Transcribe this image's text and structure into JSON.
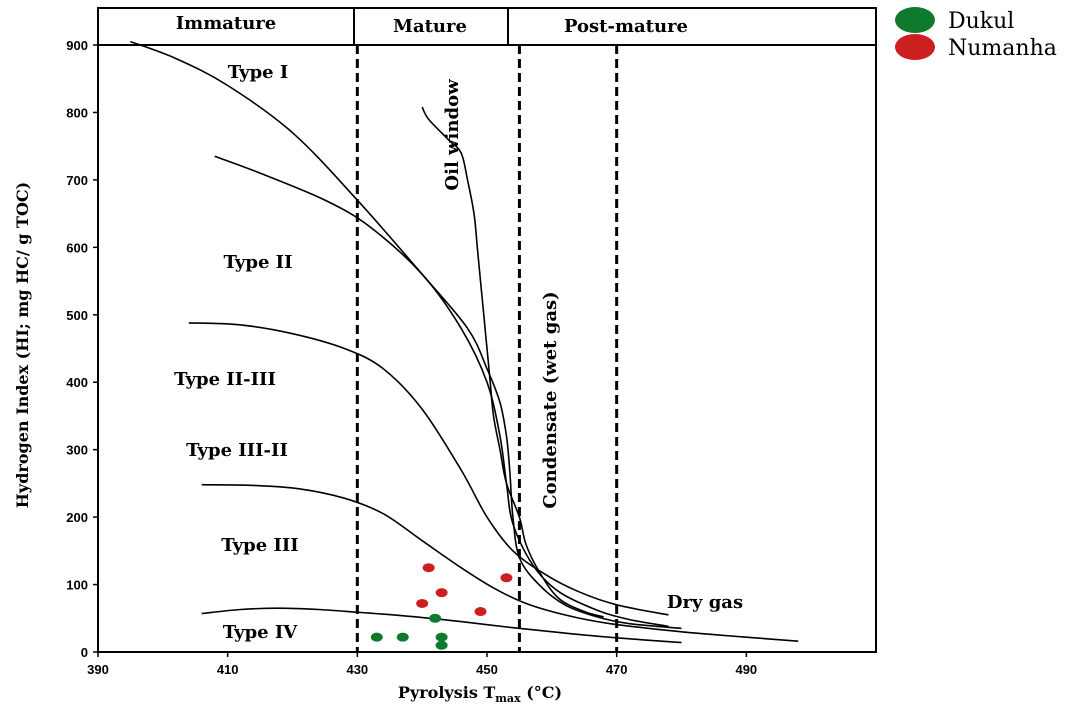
{
  "chart_data": {
    "type": "scatter",
    "title": "",
    "xlabel": "Pyrolysis T",
    "xlabel_sub": "max",
    "xlabel_unit": " (°C)",
    "ylabel": "Hydrogen Index (HI; mg HC/ g TOC)",
    "xlim": [
      390,
      510
    ],
    "ylim": [
      0,
      900
    ],
    "x_ticks": [
      "390",
      "410",
      "430",
      "450",
      "470",
      "490"
    ],
    "y_ticks": [
      "0",
      "100",
      "200",
      "300",
      "400",
      "500",
      "600",
      "700",
      "800",
      "900"
    ],
    "maturity_zones": [
      "Immature",
      "Mature",
      "Post-mature"
    ],
    "zone_boundaries": [
      430,
      455,
      470
    ],
    "kerogen_labels": [
      "Type I",
      "Type II",
      "Type II-III",
      "Type III-II",
      "Type III",
      "Type IV"
    ],
    "region_labels": [
      "Oil window",
      "Condensate (wet gas)",
      "Dry gas"
    ],
    "legend_position": "top-right",
    "colors": {
      "Dukul": "#0f7a2e",
      "Numanha": "#cc1f1f"
    },
    "series": [
      {
        "name": "Dukul",
        "points": [
          [
            433,
            22
          ],
          [
            437,
            22
          ],
          [
            442,
            50
          ],
          [
            443,
            22
          ],
          [
            443,
            10
          ]
        ]
      },
      {
        "name": "Numanha",
        "points": [
          [
            441,
            125
          ],
          [
            443,
            88
          ],
          [
            440,
            72
          ],
          [
            449,
            60
          ],
          [
            453,
            110
          ]
        ]
      }
    ],
    "curves": [
      [
        [
          395,
          905
        ],
        [
          402,
          880
        ],
        [
          410,
          840
        ],
        [
          420,
          770
        ],
        [
          430,
          670
        ],
        [
          440,
          560
        ],
        [
          447,
          480
        ],
        [
          450,
          420
        ],
        [
          452,
          370
        ],
        [
          453,
          320
        ],
        [
          453.5,
          270
        ],
        [
          454,
          200
        ],
        [
          455,
          140
        ],
        [
          458,
          100
        ],
        [
          462,
          70
        ],
        [
          467,
          52
        ],
        [
          472,
          42
        ],
        [
          480,
          35
        ]
      ],
      [
        [
          408,
          735
        ],
        [
          415,
          710
        ],
        [
          425,
          670
        ],
        [
          432,
          630
        ],
        [
          440,
          560
        ],
        [
          446,
          480
        ],
        [
          450,
          400
        ],
        [
          452,
          320
        ],
        [
          453,
          250
        ],
        [
          454,
          190
        ],
        [
          457,
          130
        ],
        [
          461,
          90
        ],
        [
          467,
          62
        ],
        [
          472,
          48
        ],
        [
          478,
          38
        ]
      ],
      [
        [
          404,
          488
        ],
        [
          412,
          485
        ],
        [
          420,
          472
        ],
        [
          428,
          450
        ],
        [
          434,
          420
        ],
        [
          440,
          360
        ],
        [
          446,
          270
        ],
        [
          450,
          200
        ],
        [
          454,
          150
        ],
        [
          459,
          115
        ],
        [
          464,
          90
        ],
        [
          470,
          70
        ],
        [
          478,
          55
        ]
      ],
      [
        [
          406,
          248
        ],
        [
          414,
          247
        ],
        [
          421,
          242
        ],
        [
          428,
          228
        ],
        [
          434,
          205
        ],
        [
          440,
          165
        ],
        [
          446,
          125
        ],
        [
          451,
          95
        ],
        [
          456,
          72
        ],
        [
          462,
          55
        ],
        [
          469,
          42
        ],
        [
          480,
          30
        ],
        [
          490,
          22
        ],
        [
          498,
          16
        ]
      ],
      [
        [
          406,
          57
        ],
        [
          412,
          63
        ],
        [
          418,
          65
        ],
        [
          424,
          63
        ],
        [
          430,
          59
        ],
        [
          438,
          53
        ],
        [
          446,
          45
        ],
        [
          454,
          36
        ],
        [
          462,
          28
        ],
        [
          470,
          21
        ],
        [
          480,
          14
        ]
      ],
      [
        [
          440,
          808
        ],
        [
          441,
          790
        ],
        [
          444,
          760
        ],
        [
          446,
          740
        ],
        [
          447,
          700
        ],
        [
          448,
          650
        ],
        [
          448.5,
          600
        ],
        [
          449,
          550
        ],
        [
          449.5,
          500
        ],
        [
          450,
          450
        ],
        [
          450.5,
          400
        ],
        [
          451,
          350
        ],
        [
          452,
          300
        ],
        [
          453,
          250
        ],
        [
          455,
          200
        ],
        [
          456,
          160
        ],
        [
          458,
          120
        ],
        [
          461,
          80
        ],
        [
          465,
          60
        ],
        [
          468,
          52
        ]
      ]
    ]
  }
}
